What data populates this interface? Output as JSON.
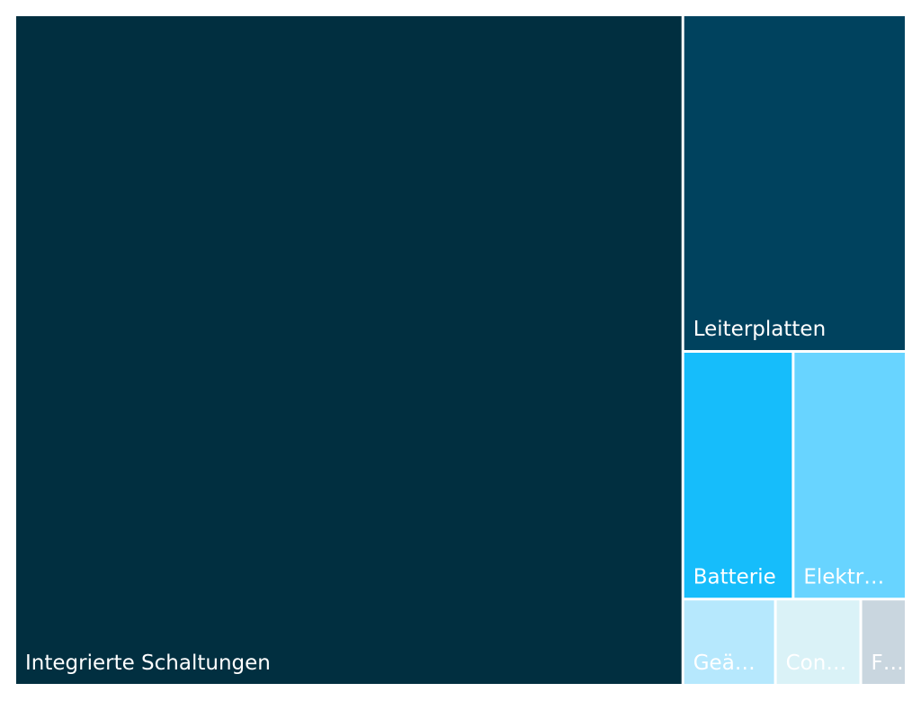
{
  "chart_data": {
    "type": "treemap",
    "title": "",
    "nodes": [
      {
        "name": "Integrierte Schaltungen",
        "label": "Integrierte Schaltungen",
        "value": 75.1,
        "color": "#012f40"
      },
      {
        "name": "Leiterplatten",
        "label": "Leiterplatten",
        "value": 12.5,
        "color": "#00425e"
      },
      {
        "name": "Batterie",
        "label": "Batterie",
        "value": 4.6,
        "color": "#16bdfb"
      },
      {
        "name": "Elektr…",
        "label": "Elektr…",
        "value": 4.6,
        "color": "#68d4ff"
      },
      {
        "name": "Geä…",
        "label": "Geä…",
        "value": 1.3,
        "color": "#b6e8fd"
      },
      {
        "name": "Con…",
        "label": "Con…",
        "value": 1.2,
        "color": "#daf2f7"
      },
      {
        "name": "F…",
        "label": "F…",
        "value": 0.6,
        "color": "#c9d6df"
      }
    ]
  }
}
